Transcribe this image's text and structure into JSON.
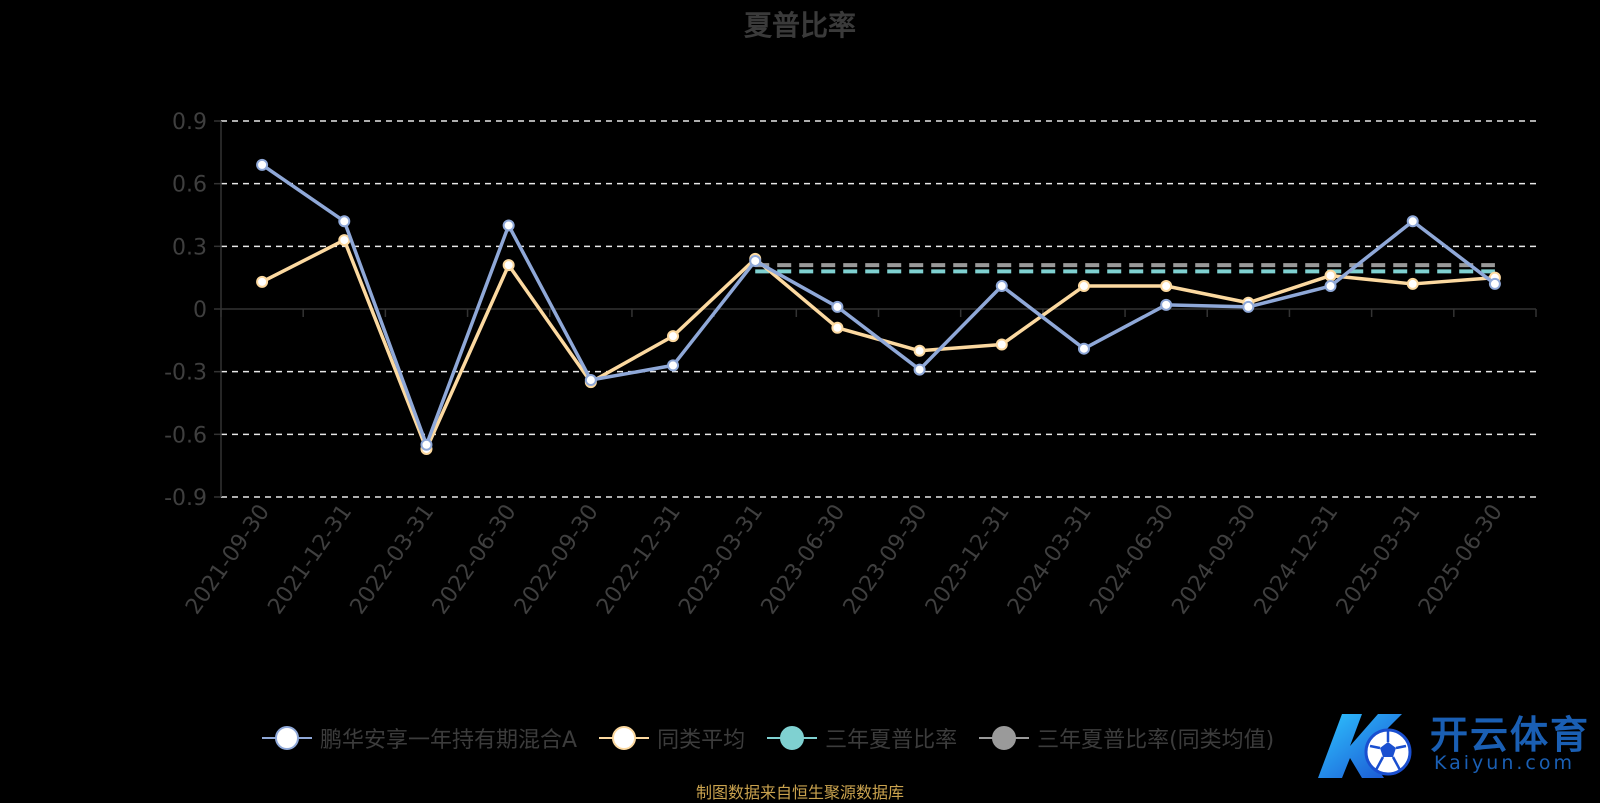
{
  "page": {
    "footer_note": "制图数据来自恒生聚源数据库",
    "watermark": {
      "text_cn": "开云体育",
      "text_en": "Kaiyun.com"
    }
  },
  "chart_data": {
    "type": "line",
    "title": "夏普比率",
    "categories": [
      "2021-09-30",
      "2021-12-31",
      "2022-03-31",
      "2022-06-30",
      "2022-09-30",
      "2022-12-31",
      "2023-03-31",
      "2023-06-30",
      "2023-09-30",
      "2023-12-31",
      "2024-03-31",
      "2024-06-30",
      "2024-09-30",
      "2024-12-31",
      "2025-03-31",
      "2025-06-30"
    ],
    "yticks": [
      0.9,
      0.6,
      0.3,
      0,
      -0.3,
      -0.6,
      -0.9
    ],
    "ytick_labels": [
      "0.9",
      "0.6",
      "0.3",
      "0",
      "-0.3",
      "-0.6",
      "-0.9"
    ],
    "ylim": [
      -0.9,
      0.9
    ],
    "grid": true,
    "legend_position": "bottom",
    "series": [
      {
        "name": "鹏华安享一年持有期混合A",
        "color": "#8fa8d8",
        "marker_fill": "#ffffff",
        "values": [
          0.69,
          0.42,
          -0.65,
          0.4,
          -0.34,
          -0.27,
          0.23,
          0.01,
          -0.29,
          0.11,
          -0.19,
          0.02,
          0.01,
          0.11,
          0.42,
          0.12
        ]
      },
      {
        "name": "同类平均",
        "color": "#fcd9a0",
        "marker_fill": "#ffffff",
        "values": [
          0.13,
          0.33,
          -0.67,
          0.21,
          -0.35,
          -0.13,
          0.24,
          -0.09,
          -0.2,
          -0.17,
          0.11,
          0.11,
          0.03,
          0.16,
          0.12,
          0.15
        ]
      },
      {
        "name": "三年夏普比率",
        "color": "#7fd1d1",
        "dashed": true,
        "x_start": "2023-03-31",
        "x_end": "2025-06-30",
        "value": 0.18
      },
      {
        "name": "三年夏普比率(同类均值)",
        "color": "#9a9a9a",
        "dashed": true,
        "x_start": "2023-03-31",
        "x_end": "2025-06-30",
        "value": 0.21
      }
    ]
  }
}
